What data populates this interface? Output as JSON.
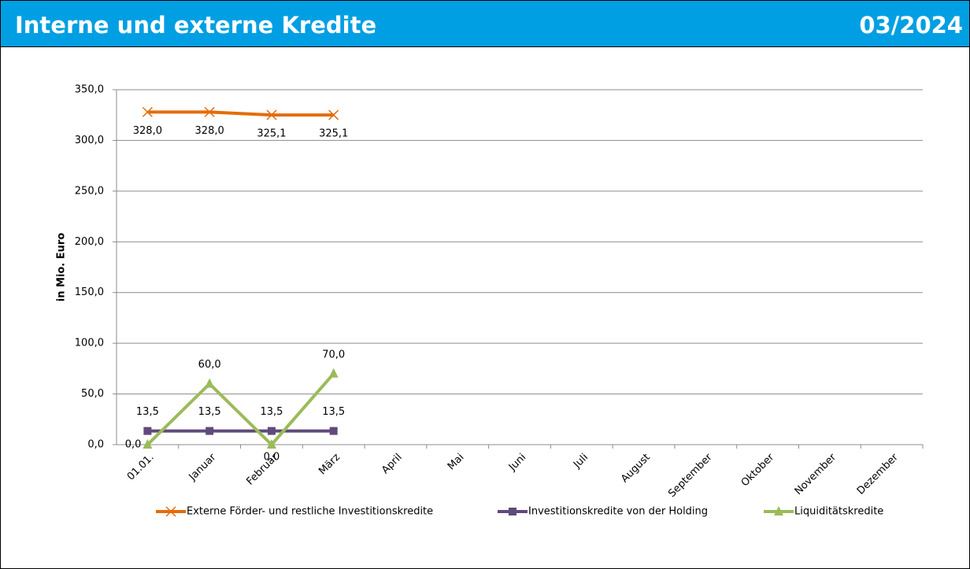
{
  "header": {
    "title": "Interne und externe Kredite",
    "date": "03/2024"
  },
  "chart_data": {
    "type": "line",
    "ylabel": "in Mio. Euro",
    "categories": [
      "01.01.",
      "Januar",
      "Februar",
      "März",
      "April",
      "Mai",
      "Juni",
      "Juli",
      "August",
      "September",
      "Oktober",
      "November",
      "Dezember"
    ],
    "ylim": [
      0,
      350
    ],
    "yticks": [
      {
        "value": 0,
        "label": "0,0"
      },
      {
        "value": 50,
        "label": "50,0"
      },
      {
        "value": 100,
        "label": "100,0"
      },
      {
        "value": 150,
        "label": "150,0"
      },
      {
        "value": 200,
        "label": "200,0"
      },
      {
        "value": 250,
        "label": "250,0"
      },
      {
        "value": 300,
        "label": "300,0"
      },
      {
        "value": 350,
        "label": "350,0"
      }
    ],
    "grid": true,
    "legend": "bottom",
    "series": [
      {
        "name": "Externe Förder- und restliche Investitionskredite",
        "color": "#e46c0a",
        "marker": "x",
        "values": [
          328.0,
          328.0,
          325.1,
          325.1,
          null,
          null,
          null,
          null,
          null,
          null,
          null,
          null,
          null
        ],
        "value_labels": [
          "328,0",
          "328,0",
          "325,1",
          "325,1",
          null,
          null,
          null,
          null,
          null,
          null,
          null,
          null,
          null
        ]
      },
      {
        "name": "Investitionskredite von der Holding",
        "color": "#604a7b",
        "marker": "square",
        "values": [
          13.5,
          13.5,
          13.5,
          13.5,
          null,
          null,
          null,
          null,
          null,
          null,
          null,
          null,
          null
        ],
        "value_labels": [
          "13,5",
          "13,5",
          "13,5",
          "13,5",
          null,
          null,
          null,
          null,
          null,
          null,
          null,
          null,
          null
        ]
      },
      {
        "name": "Liquiditätskredite",
        "color": "#9bbb59",
        "marker": "triangle",
        "values": [
          0,
          60,
          0,
          70,
          null,
          null,
          null,
          null,
          null,
          null,
          null,
          null,
          null
        ],
        "value_labels": [
          "0,0",
          "60,0",
          "0,0",
          "70,0",
          null,
          null,
          null,
          null,
          null,
          null,
          null,
          null,
          null
        ]
      }
    ]
  }
}
